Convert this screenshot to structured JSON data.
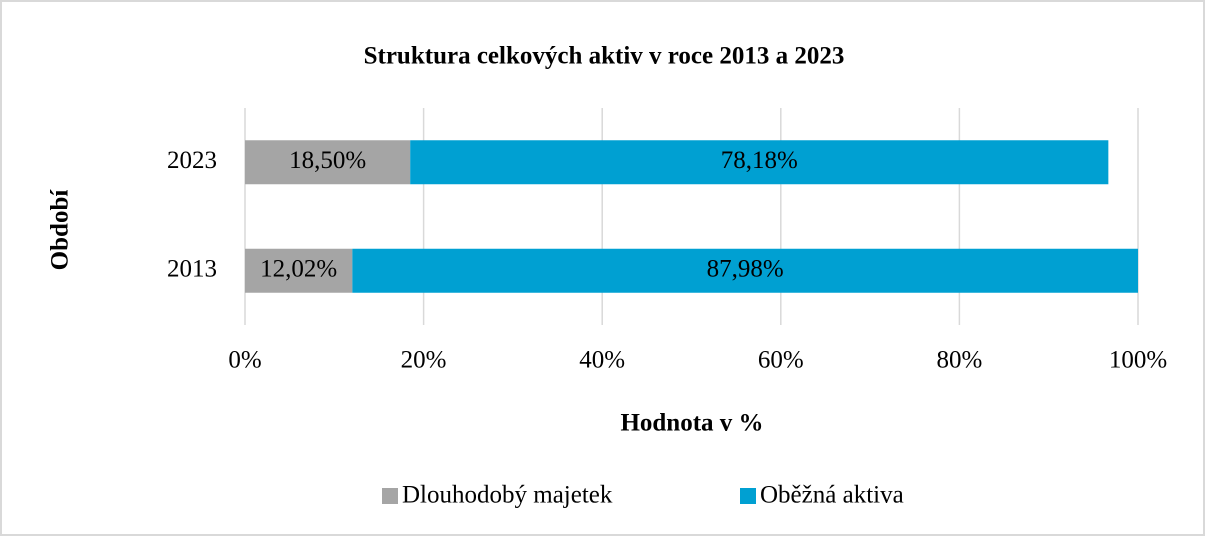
{
  "chart_data": {
    "type": "stacked_barh",
    "title": "Struktura celkových aktiv v roce 2013 a 2023",
    "x_label": "Hodnota v %",
    "y_label": "Období",
    "categories": [
      "2013",
      "2023"
    ],
    "series": [
      {
        "name": "Dlouhodobý majetek",
        "color": "#a5a5a5",
        "values": [
          12.02,
          18.5
        ],
        "value_labels": [
          "12,02%",
          "18,50%"
        ]
      },
      {
        "name": "Oběžná aktiva",
        "color": "#00a0d2",
        "values": [
          87.98,
          78.18
        ],
        "value_labels": [
          "87,98%",
          "78,18%"
        ]
      }
    ],
    "xlim": [
      0,
      100
    ],
    "xticks": [
      {
        "value": 0,
        "label": "0%"
      },
      {
        "value": 20,
        "label": "20%"
      },
      {
        "value": 40,
        "label": "40%"
      },
      {
        "value": 60,
        "label": "60%"
      },
      {
        "value": 80,
        "label": "80%"
      },
      {
        "value": 100,
        "label": "100%"
      }
    ],
    "grid": true,
    "legend": "bottom"
  }
}
